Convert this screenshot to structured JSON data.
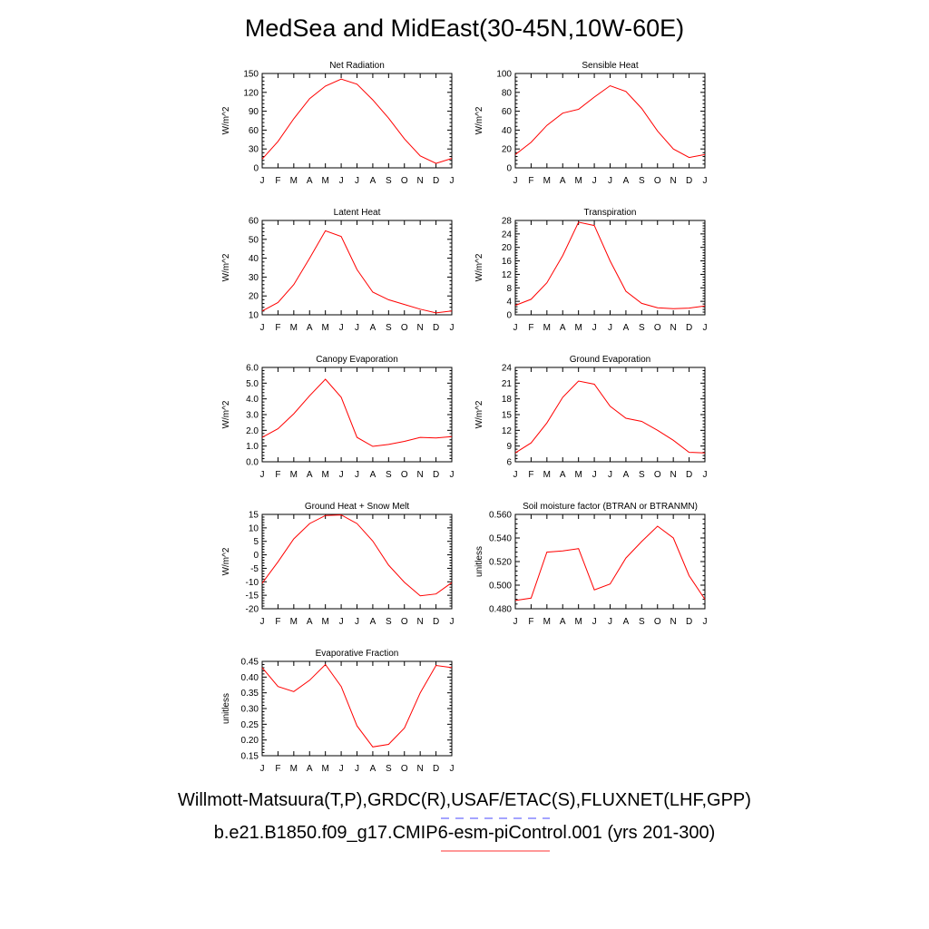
{
  "title": "MedSea and MidEast(30-45N,10W-60E)",
  "legend": {
    "obs_label": "Willmott-Matsuura(T,P),GRDC(R),USAF/ETAC(S),FLUXNET(LHF,GPP)",
    "model_label": "b.e21.B1850.f09_g17.CMIP6-esm-piControl.001 (yrs 201-300)",
    "obs_color": "#4a4aff",
    "model_color": "#ff3030"
  },
  "colors": {
    "line": "#ff0000",
    "axis": "#000000"
  },
  "chart_data": [
    {
      "type": "line",
      "title": "Net Radiation",
      "xlabel": "",
      "ylabel": "W/m^2",
      "categories": [
        "J",
        "F",
        "M",
        "A",
        "M",
        "J",
        "J",
        "A",
        "S",
        "O",
        "N",
        "D",
        "J"
      ],
      "values": [
        14,
        42,
        78,
        110,
        130,
        141,
        133,
        108,
        79,
        46,
        19,
        7,
        15
      ],
      "ylim": [
        0,
        150
      ],
      "yticks": [
        "0",
        "30",
        "60",
        "90",
        "120",
        "150"
      ],
      "ytick_values": [
        0,
        30,
        60,
        90,
        120,
        150
      ]
    },
    {
      "type": "line",
      "title": "Sensible Heat",
      "xlabel": "",
      "ylabel": "W/m^2",
      "categories": [
        "J",
        "F",
        "M",
        "A",
        "M",
        "J",
        "J",
        "A",
        "S",
        "O",
        "N",
        "D",
        "J"
      ],
      "values": [
        14,
        27,
        45,
        58,
        62,
        75,
        87,
        81,
        63,
        39,
        20,
        11,
        14
      ],
      "ylim": [
        0,
        100
      ],
      "yticks": [
        "0",
        "20",
        "40",
        "60",
        "80",
        "100"
      ],
      "ytick_values": [
        0,
        20,
        40,
        60,
        80,
        100
      ]
    },
    {
      "type": "line",
      "title": "Latent Heat",
      "xlabel": "",
      "ylabel": "W/m^2",
      "categories": [
        "J",
        "F",
        "M",
        "A",
        "M",
        "J",
        "J",
        "A",
        "S",
        "O",
        "N",
        "D",
        "J"
      ],
      "values": [
        12,
        16.5,
        26,
        40,
        54.5,
        51.5,
        34,
        22,
        18,
        15.5,
        13,
        11,
        12
      ],
      "ylim": [
        10,
        60
      ],
      "yticks": [
        "10",
        "20",
        "30",
        "40",
        "50",
        "60"
      ],
      "ytick_values": [
        10,
        20,
        30,
        40,
        50,
        60
      ]
    },
    {
      "type": "line",
      "title": "Transpiration",
      "xlabel": "",
      "ylabel": "W/m^2",
      "categories": [
        "J",
        "F",
        "M",
        "A",
        "M",
        "J",
        "J",
        "A",
        "S",
        "O",
        "N",
        "D",
        "J"
      ],
      "values": [
        2.8,
        4.6,
        9.5,
        17.6,
        27.5,
        26.5,
        16,
        7,
        3.4,
        2.1,
        1.8,
        2,
        2.6
      ],
      "ylim": [
        0,
        28
      ],
      "yticks": [
        "0",
        "4",
        "8",
        "12",
        "16",
        "20",
        "24",
        "28"
      ],
      "ytick_values": [
        0,
        4,
        8,
        12,
        16,
        20,
        24,
        28
      ]
    },
    {
      "type": "line",
      "title": "Canopy Evaporation",
      "xlabel": "",
      "ylabel": "W/m^2",
      "categories": [
        "J",
        "F",
        "M",
        "A",
        "M",
        "J",
        "J",
        "A",
        "S",
        "O",
        "N",
        "D",
        "J"
      ],
      "values": [
        1.55,
        2.1,
        3.05,
        4.2,
        5.25,
        4.1,
        1.55,
        0.98,
        1.1,
        1.3,
        1.55,
        1.52,
        1.6
      ],
      "ylim": [
        0,
        6
      ],
      "yticks": [
        "0.0",
        "1.0",
        "2.0",
        "3.0",
        "4.0",
        "5.0",
        "6.0"
      ],
      "ytick_values": [
        0,
        1,
        2,
        3,
        4,
        5,
        6
      ]
    },
    {
      "type": "line",
      "title": "Ground Evaporation",
      "xlabel": "",
      "ylabel": "W/m^2",
      "categories": [
        "J",
        "F",
        "M",
        "A",
        "M",
        "J",
        "J",
        "A",
        "S",
        "O",
        "N",
        "D",
        "J"
      ],
      "values": [
        7.7,
        9.6,
        13.4,
        18.3,
        21.4,
        20.8,
        16.6,
        14.3,
        13.7,
        12,
        10.1,
        7.8,
        7.7
      ],
      "ylim": [
        6,
        24
      ],
      "yticks": [
        "6",
        "9",
        "12",
        "15",
        "18",
        "21",
        "24"
      ],
      "ytick_values": [
        6,
        9,
        12,
        15,
        18,
        21,
        24
      ]
    },
    {
      "type": "line",
      "title": "Ground Heat + Snow Melt",
      "xlabel": "",
      "ylabel": "W/m^2",
      "categories": [
        "J",
        "F",
        "M",
        "A",
        "M",
        "J",
        "J",
        "A",
        "S",
        "O",
        "N",
        "D",
        "J"
      ],
      "values": [
        -10.5,
        -2.6,
        5.9,
        11.6,
        14.6,
        14.8,
        11.6,
        5.1,
        -3.8,
        -10.2,
        -15.2,
        -14.5,
        -10.3
      ],
      "ylim": [
        -20,
        15
      ],
      "yticks": [
        "-20",
        "-15",
        "-10",
        "-5",
        "0",
        "5",
        "10",
        "15"
      ],
      "ytick_values": [
        -20,
        -15,
        -10,
        -5,
        0,
        5,
        10,
        15
      ]
    },
    {
      "type": "line",
      "title": "Soil moisture factor (BTRAN or BTRANMN)",
      "xlabel": "",
      "ylabel": "unitless",
      "categories": [
        "J",
        "F",
        "M",
        "A",
        "M",
        "J",
        "J",
        "A",
        "S",
        "O",
        "N",
        "D",
        "J"
      ],
      "values": [
        0.487,
        0.489,
        0.528,
        0.529,
        0.531,
        0.496,
        0.501,
        0.523,
        0.537,
        0.55,
        0.54,
        0.508,
        0.488
      ],
      "ylim": [
        0.48,
        0.56
      ],
      "yticks": [
        "0.480",
        "0.500",
        "0.520",
        "0.540",
        "0.560"
      ],
      "ytick_values": [
        0.48,
        0.5,
        0.52,
        0.54,
        0.56
      ]
    },
    {
      "type": "line",
      "title": "Evaporative Fraction",
      "xlabel": "",
      "ylabel": "unitless",
      "categories": [
        "J",
        "F",
        "M",
        "A",
        "M",
        "J",
        "J",
        "A",
        "S",
        "O",
        "N",
        "D",
        "J"
      ],
      "values": [
        0.43,
        0.37,
        0.354,
        0.39,
        0.44,
        0.37,
        0.245,
        0.178,
        0.186,
        0.238,
        0.35,
        0.437,
        0.43
      ],
      "ylim": [
        0.15,
        0.45
      ],
      "yticks": [
        "0.15",
        "0.20",
        "0.25",
        "0.30",
        "0.35",
        "0.40",
        "0.45"
      ],
      "ytick_values": [
        0.15,
        0.2,
        0.25,
        0.3,
        0.35,
        0.4,
        0.45
      ]
    }
  ]
}
